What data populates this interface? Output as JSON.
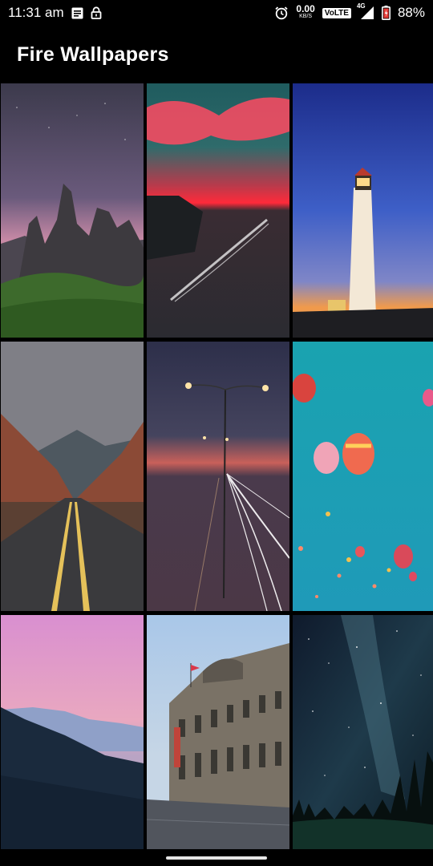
{
  "status_bar": {
    "time": "11:31 am",
    "net_speed_value": "0.00",
    "net_speed_unit": "KB/S",
    "volte_label": "VoLTE",
    "network_type": "4G",
    "battery_percent": "88%",
    "icons": [
      "notes-icon",
      "lock-icon",
      "alarm-icon",
      "signal-icon",
      "battery-icon"
    ]
  },
  "app_bar": {
    "title": "Fire Wallpapers"
  },
  "wallpapers": [
    {
      "subject": "rocky peaks under starry sky"
    },
    {
      "subject": "red clouds over lake with boat trail"
    },
    {
      "subject": "lighthouse at dusk"
    },
    {
      "subject": "desert road between red rocks"
    },
    {
      "subject": "street lights and car light trails"
    },
    {
      "subject": "hot air balloons in teal sky"
    },
    {
      "subject": "pink sky over mountain forest"
    },
    {
      "subject": "historic building by the water"
    },
    {
      "subject": "milky way over forest"
    }
  ]
}
